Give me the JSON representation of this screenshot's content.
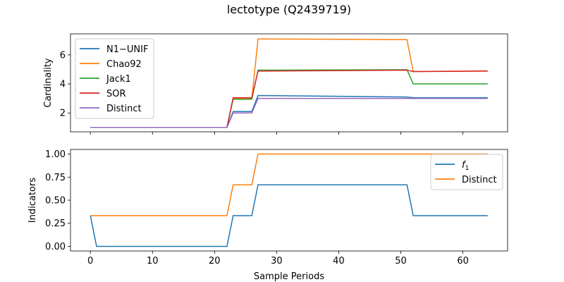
{
  "title": "lectotype (Q2439719)",
  "colors": {
    "blue": "#1f77b4",
    "orange": "#ff7f0e",
    "green": "#2ca02c",
    "red": "#d62728",
    "purple": "#9467bd"
  },
  "chart_data": [
    {
      "type": "line",
      "xlabel": "",
      "ylabel": "Cardinality",
      "xlim": [
        -3.2,
        67.2
      ],
      "ylim": [
        0.7,
        7.45
      ],
      "xticks": [
        0,
        10,
        20,
        30,
        40,
        50,
        60
      ],
      "yticks": [
        2,
        4,
        6
      ],
      "ytick_labels": [
        "2",
        "4",
        "6"
      ],
      "show_x_tick_labels": false,
      "grid": false,
      "legend": "upper-left",
      "series": [
        {
          "name": "N1−UNIF",
          "color": "#1f77b4",
          "x": [
            0,
            22,
            23,
            26,
            27,
            51,
            52,
            64
          ],
          "y": [
            1,
            1,
            2.1,
            2.1,
            3.2,
            3.1,
            3.05,
            3.05
          ]
        },
        {
          "name": "Chao92",
          "color": "#ff7f0e",
          "x": [
            0,
            22,
            23,
            26,
            27,
            51,
            52,
            64
          ],
          "y": [
            1,
            1,
            3.0,
            3.0,
            7.1,
            7.05,
            4.85,
            4.9
          ]
        },
        {
          "name": "Jack1",
          "color": "#2ca02c",
          "x": [
            0,
            22,
            23,
            26,
            27,
            51,
            52,
            64
          ],
          "y": [
            1,
            1,
            2.95,
            2.95,
            4.95,
            4.98,
            4.0,
            4.0
          ]
        },
        {
          "name": "SOR",
          "color": "#d62728",
          "x": [
            0,
            22,
            23,
            26,
            27,
            51,
            52,
            64
          ],
          "y": [
            1,
            1,
            3.05,
            3.05,
            4.88,
            4.95,
            4.85,
            4.88
          ]
        },
        {
          "name": "Distinct",
          "color": "#9467bd",
          "x": [
            0,
            22,
            23,
            26,
            27,
            51,
            52,
            64
          ],
          "y": [
            1,
            1,
            2,
            2,
            3,
            3,
            3,
            3
          ]
        }
      ]
    },
    {
      "type": "line",
      "xlabel": "Sample Periods",
      "ylabel": "Indicators",
      "xlim": [
        -3.2,
        67.2
      ],
      "ylim": [
        -0.05,
        1.05
      ],
      "xticks": [
        0,
        10,
        20,
        30,
        40,
        50,
        60
      ],
      "xtick_labels": [
        "0",
        "10",
        "20",
        "30",
        "40",
        "50",
        "60"
      ],
      "yticks": [
        0.0,
        0.25,
        0.5,
        0.75,
        1.0
      ],
      "ytick_labels": [
        "0.00",
        "0.25",
        "0.50",
        "0.75",
        "1.00"
      ],
      "grid": false,
      "legend": "upper-right",
      "series": [
        {
          "name": "f",
          "name_subscript": "1",
          "color": "#1f77b4",
          "x": [
            0,
            1,
            22,
            23,
            26,
            27,
            51,
            52,
            64
          ],
          "y": [
            0.333,
            0,
            0,
            0.333,
            0.333,
            0.667,
            0.667,
            0.333,
            0.333
          ]
        },
        {
          "name": "Distinct",
          "color": "#ff7f0e",
          "x": [
            0,
            22,
            23,
            26,
            27,
            64
          ],
          "y": [
            0.333,
            0.333,
            0.667,
            0.667,
            1,
            1
          ]
        }
      ]
    }
  ]
}
